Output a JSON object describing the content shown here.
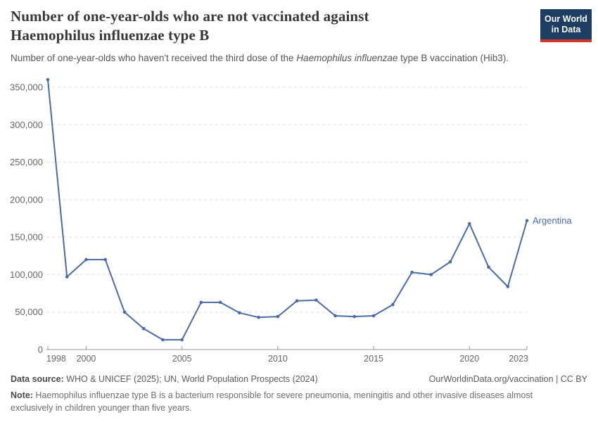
{
  "header": {
    "title_line1": "Number of one-year-olds who are not vaccinated against",
    "title_line2": "Haemophilus influenzae type B",
    "subtitle_pre": "Number of one-year-olds who haven't received the third dose of the ",
    "subtitle_italic": "Haemophilus influenzae",
    "subtitle_post": " type B vaccination (Hib3).",
    "logo_line1": "Our World",
    "logo_line2": "in Data"
  },
  "chart_data": {
    "type": "line",
    "title": "Number of one-year-olds who are not vaccinated against Haemophilus influenzae type B",
    "subtitle": "Number of one-year-olds who haven't received the third dose of the Haemophilus influenzae type B vaccination (Hib3).",
    "x": [
      1998,
      1999,
      2000,
      2001,
      2002,
      2003,
      2004,
      2005,
      2006,
      2007,
      2008,
      2009,
      2010,
      2011,
      2012,
      2013,
      2014,
      2015,
      2016,
      2017,
      2018,
      2019,
      2020,
      2021,
      2022,
      2023
    ],
    "series": [
      {
        "name": "Argentina",
        "values": [
          360000,
          97000,
          120000,
          120000,
          50000,
          28000,
          13000,
          13000,
          63000,
          63000,
          49000,
          43000,
          44000,
          65000,
          66000,
          45000,
          44000,
          45000,
          60000,
          103000,
          100000,
          117000,
          168000,
          110000,
          84000,
          172000
        ]
      }
    ],
    "end_label": "Argentina",
    "xlim": [
      1998,
      2023
    ],
    "ylim": [
      0,
      360000
    ],
    "x_ticks": [
      1998,
      2000,
      2005,
      2010,
      2015,
      2020,
      2023
    ],
    "x_tick_labels": [
      "1998",
      "2000",
      "2005",
      "2010",
      "2015",
      "2020",
      "2023"
    ],
    "y_ticks": [
      0,
      50000,
      100000,
      150000,
      200000,
      250000,
      300000,
      350000
    ],
    "y_tick_labels": [
      "0",
      "50,000",
      "100,000",
      "150,000",
      "200,000",
      "250,000",
      "300,000",
      "350,000"
    ],
    "grid": "horizontal dashed",
    "legend": "line-end label",
    "colors": {
      "line": "#4c6ba5",
      "grid": "#dddddd",
      "axis": "#999999",
      "tick_text": "#666666",
      "logo_bg": "#1d3d63",
      "logo_bar": "#d1362c"
    }
  },
  "footer": {
    "source_label": "Data source:",
    "source_text": " WHO & UNICEF (2025); UN, World Population Prospects (2024)",
    "link_text": "OurWorldinData.org/vaccination | CC BY",
    "note_label": "Note:",
    "note_line1": " Haemophilus influenzae type B is a bacterium responsible for severe pneumonia, meningitis and other invasive diseases almost",
    "note_line2": "exclusively in children younger than five years."
  }
}
